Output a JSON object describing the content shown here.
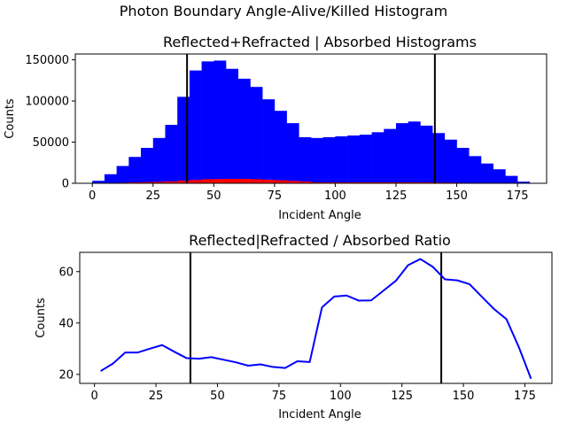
{
  "figure": {
    "suptitle": "Photon Boundary Angle-Alive/Killed Histogram"
  },
  "chart_data": [
    {
      "type": "bar",
      "title": "Reflected+Refracted | Absorbed Histograms",
      "xlabel": "Incident Angle",
      "ylabel": "Counts",
      "xlim": [
        -7,
        187
      ],
      "ylim": [
        0,
        157000
      ],
      "bin_width": 5,
      "bin_starts": [
        0,
        5,
        10,
        15,
        20,
        25,
        30,
        35,
        40,
        45,
        50,
        55,
        60,
        65,
        70,
        75,
        80,
        85,
        90,
        95,
        100,
        105,
        110,
        115,
        120,
        125,
        130,
        135,
        140,
        145,
        150,
        155,
        160,
        165,
        170,
        175
      ],
      "xticks": [
        0,
        25,
        50,
        75,
        100,
        125,
        150,
        175
      ],
      "yticks": [
        0,
        50000,
        100000,
        150000
      ],
      "ytick_labels": [
        "0",
        "50000",
        "100000",
        "150000"
      ],
      "vlines": [
        39,
        141
      ],
      "series": [
        {
          "color": "#0000ff",
          "values": [
            3000,
            11000,
            21000,
            32000,
            43000,
            55000,
            71000,
            105000,
            137000,
            148000,
            149000,
            139000,
            127000,
            117000,
            102000,
            88000,
            73000,
            56000,
            55000,
            56000,
            57000,
            58000,
            59000,
            62000,
            66000,
            73000,
            75000,
            70000,
            61000,
            53000,
            43000,
            33000,
            24000,
            17000,
            9000,
            2000
          ]
        },
        {
          "color": "#ff0000",
          "values": [
            150,
            450,
            750,
            1100,
            1400,
            1800,
            2300,
            3200,
            4000,
            4900,
            5200,
            5400,
            5400,
            4900,
            4200,
            3600,
            2900,
            2200,
            1200,
            1100,
            1100,
            1200,
            1200,
            1200,
            1200,
            1200,
            1200,
            1100,
            950,
            800,
            650,
            550,
            450,
            380,
            300,
            100
          ]
        }
      ]
    },
    {
      "type": "line",
      "title": "Reflected|Refracted / Absorbed Ratio",
      "xlabel": "Incident Angle",
      "ylabel": "Counts",
      "xlim": [
        -6,
        186
      ],
      "ylim": [
        16.5,
        67.5
      ],
      "xticks": [
        0,
        25,
        50,
        75,
        100,
        125,
        150,
        175
      ],
      "yticks": [
        20,
        40,
        60
      ],
      "vlines": [
        39,
        141
      ],
      "series": [
        {
          "color": "#0000ff",
          "x": [
            2.5,
            7.5,
            12.5,
            17.5,
            22.5,
            27.5,
            32.5,
            37.5,
            42.5,
            47.5,
            52.5,
            57.5,
            62.5,
            67.5,
            72.5,
            77.5,
            82.5,
            87.5,
            92.5,
            97.5,
            102.5,
            107.5,
            112.5,
            117.5,
            122.5,
            127.5,
            132.5,
            137.5,
            142.5,
            147.5,
            152.5,
            157.5,
            162.5,
            167.5,
            172.5,
            177.5
          ],
          "y": [
            21.3,
            24.2,
            28.5,
            28.5,
            30,
            31.4,
            28.8,
            26.3,
            26.1,
            26.7,
            25.7,
            24.7,
            23.4,
            23.9,
            22.9,
            22.5,
            25.1,
            24.8,
            46.1,
            50.3,
            50.7,
            48.7,
            48.8,
            52.6,
            56.4,
            62.5,
            64.9,
            61.9,
            57,
            56.6,
            55.1,
            50.2,
            45.4,
            41.5,
            30.7,
            18.3
          ]
        }
      ]
    }
  ]
}
